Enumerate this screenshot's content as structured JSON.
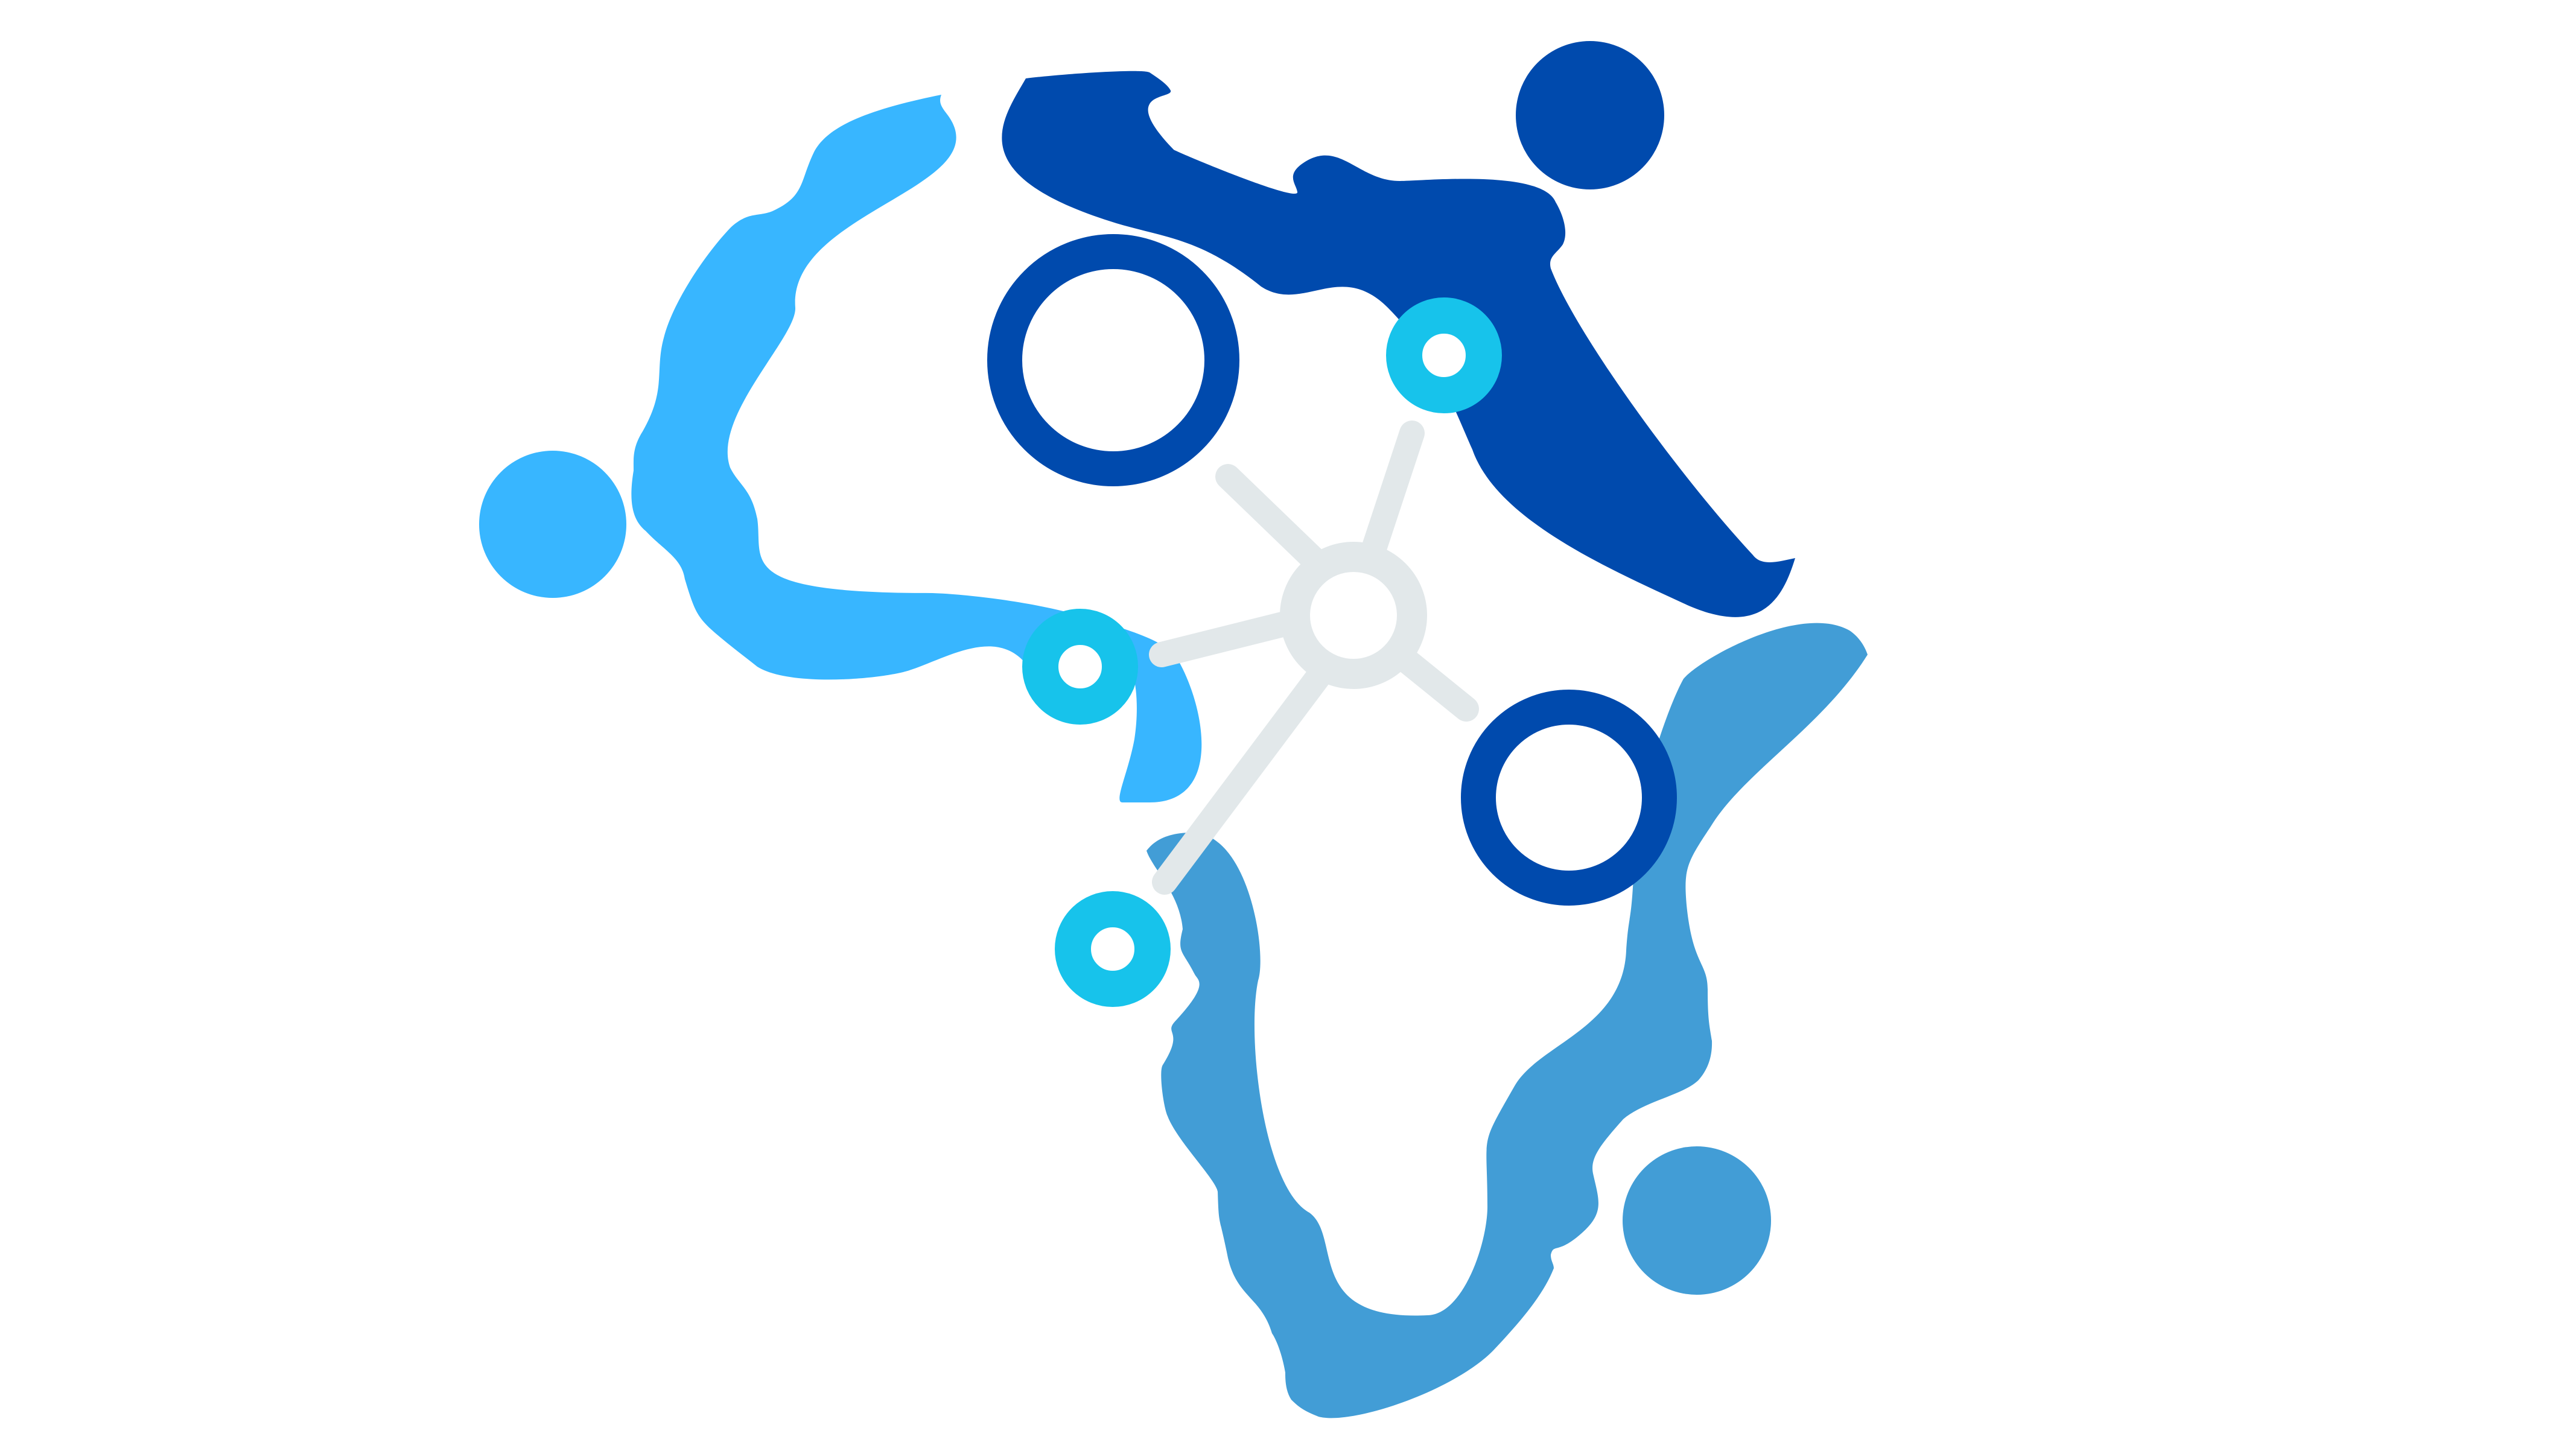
{
  "palette": {
    "background": "#ffffff",
    "dark_blue": "#004aad",
    "light_blue": "#38b6ff",
    "mid_blue": "#429dd6",
    "cyan": "#17c3eb",
    "connector_gray": "#e2e8ea"
  },
  "logo": {
    "icon": "hub-and-spoke-network-logo",
    "figures": [
      {
        "name": "top-figure",
        "color_role": "dark_blue"
      },
      {
        "name": "left-figure",
        "color_role": "light_blue"
      },
      {
        "name": "bottom-figure",
        "color_role": "mid_blue"
      }
    ],
    "node_rings": [
      {
        "name": "large-ring-top-left",
        "color_role": "dark_blue"
      },
      {
        "name": "large-ring-right",
        "color_role": "dark_blue"
      },
      {
        "name": "small-ring-top-right",
        "color_role": "cyan"
      },
      {
        "name": "small-ring-left",
        "color_role": "cyan"
      },
      {
        "name": "small-ring-bottom",
        "color_role": "cyan"
      }
    ],
    "hub": {
      "name": "central-hub",
      "color_role": "connector_gray",
      "spoke_count": 5
    }
  }
}
